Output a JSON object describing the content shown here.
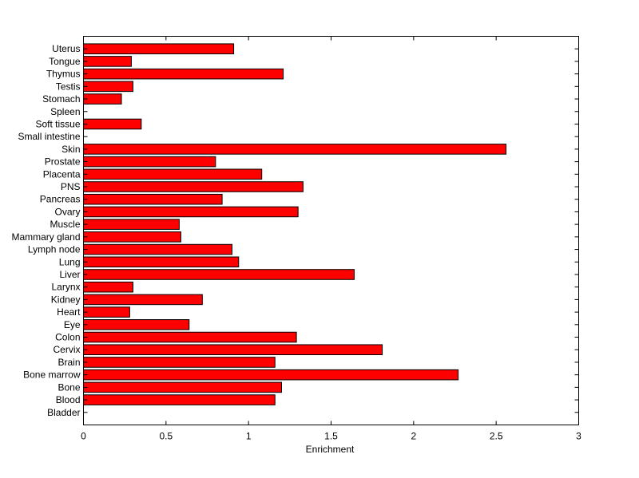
{
  "chart_data": {
    "type": "bar",
    "orientation": "horizontal",
    "title": "",
    "xlabel": "Enrichment",
    "ylabel": "",
    "xlim": [
      0,
      3
    ],
    "x_ticks": [
      0,
      0.5,
      1,
      1.5,
      2,
      2.5,
      3
    ],
    "x_tick_labels": [
      "0",
      "0.5",
      "1",
      "1.5",
      "2",
      "2.5",
      "3"
    ],
    "grid": false,
    "bar_color": "#ff0000",
    "edge_color": "#000000",
    "categories": [
      "Bladder",
      "Blood",
      "Bone",
      "Bone marrow",
      "Brain",
      "Cervix",
      "Colon",
      "Eye",
      "Heart",
      "Kidney",
      "Larynx",
      "Liver",
      "Lung",
      "Lymph node",
      "Mammary gland",
      "Muscle",
      "Ovary",
      "Pancreas",
      "PNS",
      "Placenta",
      "Prostate",
      "Skin",
      "Small intestine",
      "Soft tissue",
      "Spleen",
      "Stomach",
      "Testis",
      "Thymus",
      "Tongue",
      "Uterus"
    ],
    "values": [
      0,
      1.16,
      1.2,
      2.27,
      1.16,
      1.81,
      1.29,
      0.64,
      0.28,
      0.72,
      0.3,
      1.64,
      0.94,
      0.9,
      0.59,
      0.58,
      1.3,
      0.84,
      1.33,
      1.08,
      0.8,
      2.56,
      0,
      0.35,
      0,
      0.23,
      0.3,
      1.21,
      0.29,
      0.91
    ]
  }
}
